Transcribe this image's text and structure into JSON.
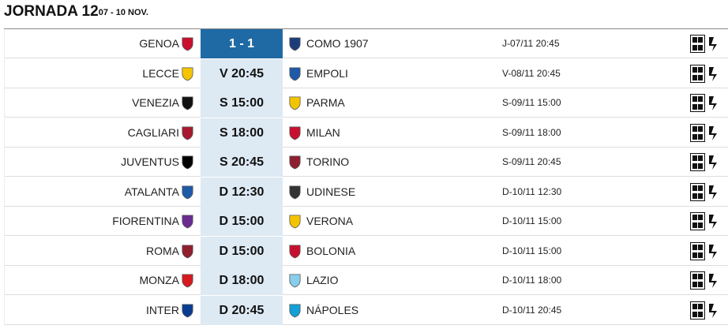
{
  "header": {
    "title": "JORNADA 12",
    "subtitle": "· 07 - 10 NOV."
  },
  "table": {
    "rows": [
      {
        "home": "GENOA",
        "result": "1 - 1",
        "away": "COMO 1907",
        "date": "J-07/11 20:45"
      },
      {
        "home": "LECCE",
        "result": "V 20:45",
        "away": "EMPOLI",
        "date": "V-08/11 20:45"
      },
      {
        "home": "VENEZIA",
        "result": "S 15:00",
        "away": "PARMA",
        "date": "S-09/11 15:00"
      },
      {
        "home": "CAGLIARI",
        "result": "S 18:00",
        "away": "MILAN",
        "date": "S-09/11 18:00"
      },
      {
        "home": "JUVENTUS",
        "result": "S 20:45",
        "away": "TORINO",
        "date": "S-09/11 20:45"
      },
      {
        "home": "ATALANTA",
        "result": "D 12:30",
        "away": "UDINESE",
        "date": "D-10/11 12:30"
      },
      {
        "home": "FIORENTINA",
        "result": "D 15:00",
        "away": "VERONA",
        "date": "D-10/11 15:00"
      },
      {
        "home": "ROMA",
        "result": "D 15:00",
        "away": "BOLONIA",
        "date": "D-10/11 15:00"
      },
      {
        "home": "MONZA",
        "result": "D 18:00",
        "away": "LAZIO",
        "date": "D-10/11 18:00"
      },
      {
        "home": "INTER",
        "result": "D 20:45",
        "away": "NÁPOLES",
        "date": "D-10/11 20:45"
      }
    ]
  }
}
